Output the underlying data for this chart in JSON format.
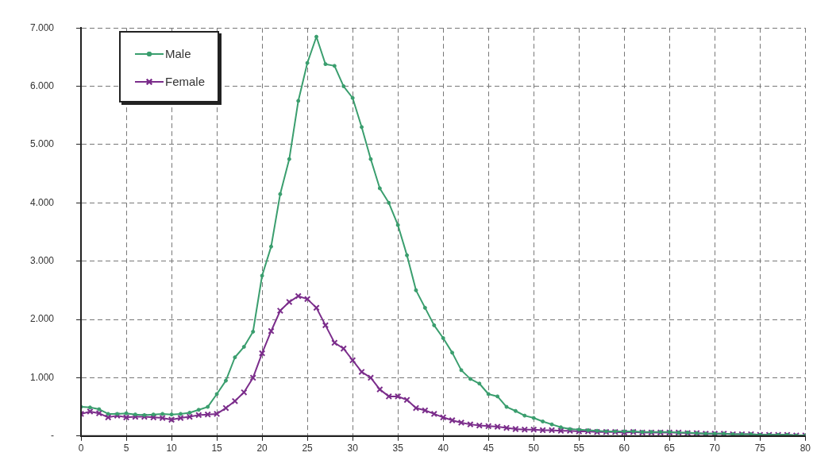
{
  "chart_data": {
    "type": "line",
    "x": [
      0,
      1,
      2,
      3,
      4,
      5,
      6,
      7,
      8,
      9,
      10,
      11,
      12,
      13,
      14,
      15,
      16,
      17,
      18,
      19,
      20,
      21,
      22,
      23,
      24,
      25,
      26,
      27,
      28,
      29,
      30,
      31,
      32,
      33,
      34,
      35,
      36,
      37,
      38,
      39,
      40,
      41,
      42,
      43,
      44,
      45,
      46,
      47,
      48,
      49,
      50,
      51,
      52,
      53,
      54,
      55,
      56,
      57,
      58,
      59,
      60,
      61,
      62,
      63,
      64,
      65,
      66,
      67,
      68,
      69,
      70,
      71,
      72,
      73,
      74,
      75,
      76,
      77,
      78,
      79,
      80
    ],
    "series": [
      {
        "name": "Male",
        "color": "#3a9e6e",
        "marker": "circle",
        "values": [
          500,
          490,
          460,
          380,
          380,
          390,
          370,
          360,
          370,
          380,
          370,
          380,
          400,
          450,
          500,
          720,
          950,
          1350,
          1530,
          1790,
          2750,
          3250,
          4150,
          4750,
          5750,
          6400,
          6850,
          6380,
          6350,
          6000,
          5800,
          5300,
          4750,
          4250,
          4000,
          3620,
          3100,
          2500,
          2200,
          1900,
          1680,
          1430,
          1130,
          980,
          900,
          720,
          680,
          500,
          430,
          350,
          310,
          250,
          200,
          150,
          120,
          110,
          100,
          90,
          80,
          80,
          80,
          80,
          70,
          70,
          70,
          70,
          60,
          60,
          50,
          40,
          40,
          40,
          30,
          30,
          30,
          20,
          20,
          20,
          20,
          10,
          10
        ]
      },
      {
        "name": "Female",
        "color": "#7b2d8b",
        "marker": "cross",
        "values": [
          380,
          420,
          390,
          320,
          350,
          320,
          330,
          330,
          320,
          310,
          280,
          310,
          330,
          360,
          370,
          380,
          480,
          600,
          750,
          1000,
          1420,
          1800,
          2150,
          2300,
          2400,
          2350,
          2200,
          1900,
          1600,
          1500,
          1300,
          1100,
          1000,
          800,
          680,
          680,
          620,
          480,
          440,
          380,
          320,
          270,
          230,
          200,
          180,
          170,
          160,
          140,
          120,
          110,
          110,
          100,
          100,
          90,
          90,
          80,
          80,
          70,
          70,
          70,
          60,
          70,
          60,
          60,
          60,
          60,
          60,
          50,
          50,
          40,
          40,
          40,
          30,
          30,
          30,
          20,
          20,
          20,
          20,
          10,
          10
        ]
      }
    ],
    "xlim": [
      0,
      80
    ],
    "xticks": [
      0,
      5,
      10,
      15,
      20,
      25,
      30,
      35,
      40,
      45,
      50,
      55,
      60,
      65,
      70,
      75,
      80
    ],
    "ylim": [
      0,
      7000
    ],
    "yticks": [
      {
        "value": 0,
        "label": "-"
      },
      {
        "value": 1000,
        "label": "1.000"
      },
      {
        "value": 2000,
        "label": "2.000"
      },
      {
        "value": 3000,
        "label": "3.000"
      },
      {
        "value": 4000,
        "label": "4.000"
      },
      {
        "value": 5000,
        "label": "5.000"
      },
      {
        "value": 6000,
        "label": "6.000"
      },
      {
        "value": 7000,
        "label": "7.000"
      }
    ],
    "grid": true,
    "legend": "top left",
    "line_style": "solid"
  }
}
